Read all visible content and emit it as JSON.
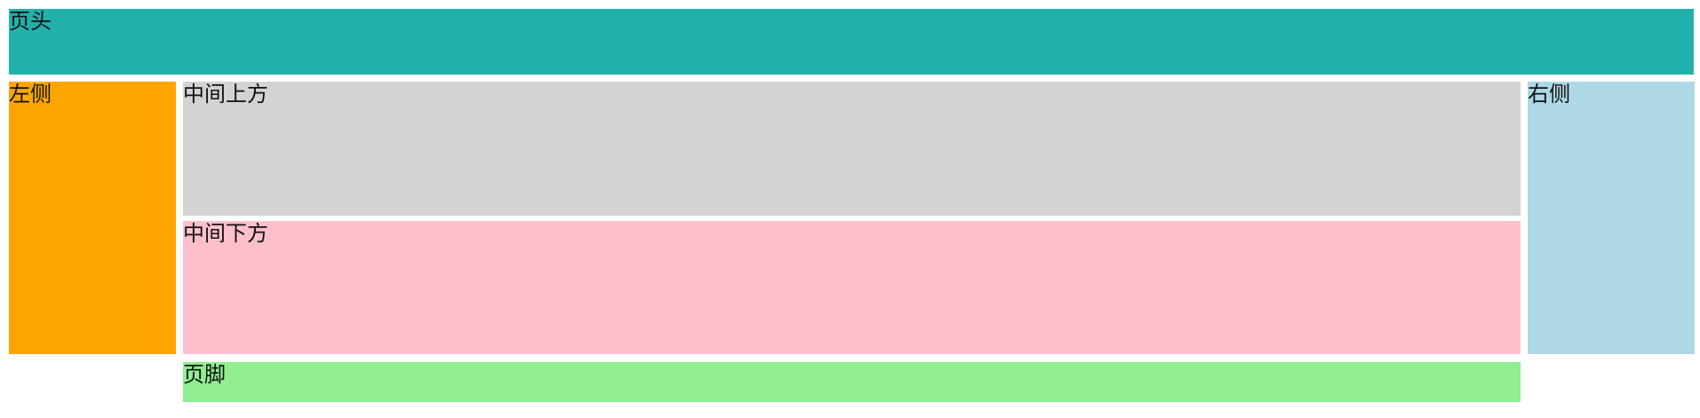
{
  "layout": {
    "header": {
      "label": "页头",
      "color": "#20B2AA"
    },
    "left": {
      "label": "左侧",
      "color": "#FFA500"
    },
    "middle_top": {
      "label": "中间上方",
      "color": "#D3D3D3"
    },
    "middle_bottom": {
      "label": "中间下方",
      "color": "#FFC0CB"
    },
    "right": {
      "label": "右侧",
      "color": "#ADD8E6"
    },
    "footer": {
      "label": "页脚",
      "color": "#90EE90"
    }
  }
}
